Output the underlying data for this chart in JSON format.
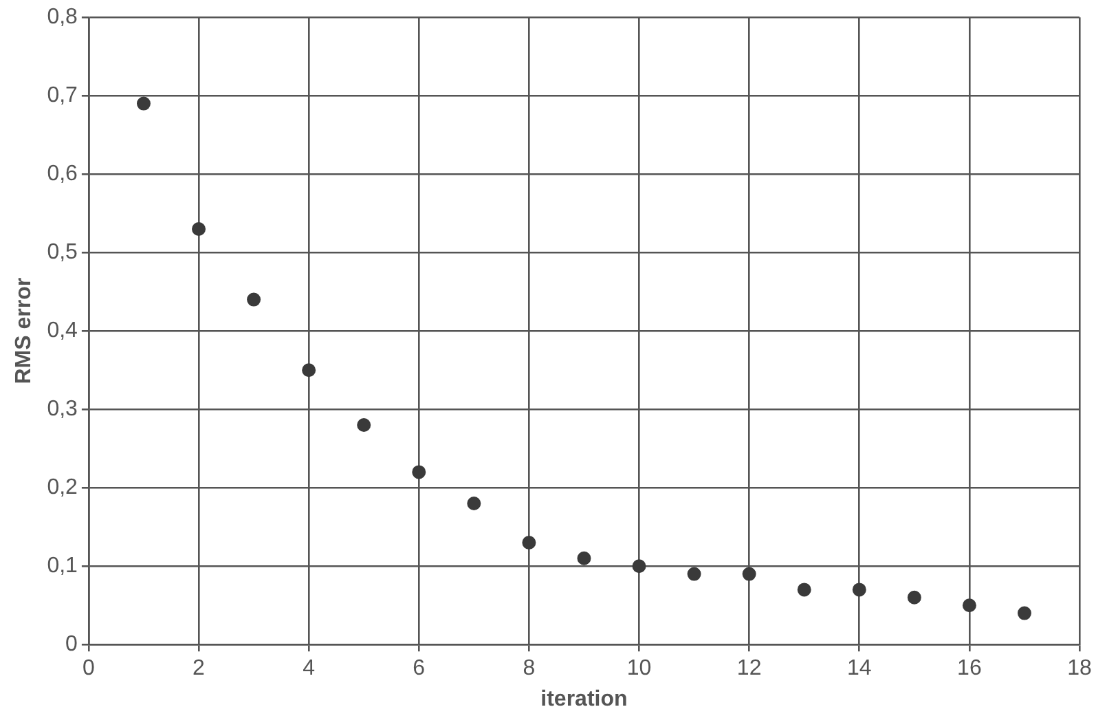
{
  "chart_data": {
    "type": "scatter",
    "xlabel": "iteration",
    "ylabel": "RMS error",
    "x": [
      1,
      2,
      3,
      4,
      5,
      6,
      7,
      8,
      9,
      10,
      11,
      12,
      13,
      14,
      15,
      16,
      17
    ],
    "series": [
      {
        "color": "#3a3a3a",
        "values": [
          0.69,
          0.53,
          0.44,
          0.35,
          0.28,
          0.22,
          0.18,
          0.13,
          0.11,
          0.1,
          0.09,
          0.09,
          0.07,
          0.07,
          0.06,
          0.05,
          0.04
        ]
      }
    ],
    "xlim": [
      0,
      18
    ],
    "xticks": [
      0,
      2,
      4,
      6,
      8,
      10,
      12,
      14,
      16,
      18
    ],
    "ylim": [
      0,
      0.8
    ],
    "yticks": [
      0,
      {
        "value": 0.1,
        "label": "0,1"
      },
      {
        "value": 0.2,
        "label": "0,2"
      },
      {
        "value": 0.3,
        "label": "0,3"
      },
      {
        "value": 0.4,
        "label": "0,4"
      },
      {
        "value": 0.5,
        "label": "0,5"
      },
      {
        "value": 0.6,
        "label": "0,6"
      },
      {
        "value": 0.7,
        "label": "0,7"
      },
      {
        "value": 0.8,
        "label": "0,8"
      }
    ],
    "grid": true,
    "legend": false,
    "marker": "circle"
  }
}
